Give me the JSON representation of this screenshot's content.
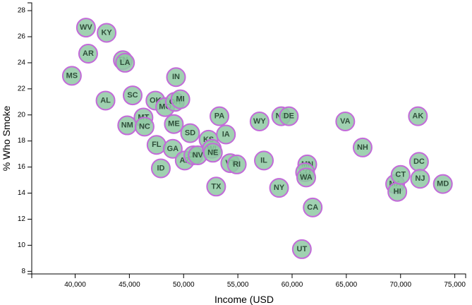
{
  "chart_data": {
    "type": "scatter",
    "title": "",
    "xlabel": "Income (USD",
    "ylabel": "% Who Smoke",
    "xlim": [
      36000,
      76000
    ],
    "ylim": [
      7.8,
      28.6
    ],
    "x_ticks": [
      40000,
      45000,
      50000,
      55000,
      60000,
      65000,
      70000,
      75000
    ],
    "x_tick_labels": [
      "40,000",
      "45,000",
      "50,000",
      "55,000",
      "60,000",
      "65,000",
      "70,000",
      "75,000"
    ],
    "y_ticks": [
      8,
      10,
      12,
      14,
      16,
      18,
      20,
      22,
      24,
      26,
      28
    ],
    "y_tick_labels": [
      "8",
      "10",
      "12",
      "14",
      "16",
      "18",
      "20",
      "22",
      "24",
      "26",
      "28"
    ],
    "marker_fill": "#8fc9a3",
    "marker_stroke": "#c36ad9",
    "points": [
      {
        "label": "WV",
        "x": 41000,
        "y": 26.7
      },
      {
        "label": "KY",
        "x": 42900,
        "y": 26.3
      },
      {
        "label": "AR",
        "x": 41200,
        "y": 24.7
      },
      {
        "label": "MS",
        "x": 39700,
        "y": 23.0
      },
      {
        "label": "TN",
        "x": 44400,
        "y": 24.2
      },
      {
        "label": "LA",
        "x": 44600,
        "y": 24.0
      },
      {
        "label": "AL",
        "x": 42800,
        "y": 21.1
      },
      {
        "label": "SC",
        "x": 45300,
        "y": 21.5
      },
      {
        "label": "IN",
        "x": 49300,
        "y": 22.9
      },
      {
        "label": "OK",
        "x": 47400,
        "y": 21.1
      },
      {
        "label": "MO",
        "x": 48300,
        "y": 20.6
      },
      {
        "label": "OH",
        "x": 49200,
        "y": 21.0
      },
      {
        "label": "MI",
        "x": 49700,
        "y": 21.2
      },
      {
        "label": "MT",
        "x": 46300,
        "y": 19.8
      },
      {
        "label": "NM",
        "x": 44800,
        "y": 19.2
      },
      {
        "label": "NC",
        "x": 46400,
        "y": 19.1
      },
      {
        "label": "ME",
        "x": 49100,
        "y": 19.3
      },
      {
        "label": "FL",
        "x": 47500,
        "y": 17.7
      },
      {
        "label": "GA",
        "x": 49000,
        "y": 17.4
      },
      {
        "label": "AZ",
        "x": 50100,
        "y": 16.5
      },
      {
        "label": "ID",
        "x": 47900,
        "y": 15.9
      },
      {
        "label": "SD",
        "x": 50600,
        "y": 18.6
      },
      {
        "label": "OR",
        "x": 50900,
        "y": 16.9
      },
      {
        "label": "NV",
        "x": 51300,
        "y": 16.9
      },
      {
        "label": "KS",
        "x": 52300,
        "y": 18.1
      },
      {
        "label": "WI",
        "x": 52600,
        "y": 17.4
      },
      {
        "label": "NE",
        "x": 52700,
        "y": 17.1
      },
      {
        "label": "PA",
        "x": 53300,
        "y": 19.9
      },
      {
        "label": "IA",
        "x": 53900,
        "y": 18.5
      },
      {
        "label": "TX",
        "x": 53000,
        "y": 14.5
      },
      {
        "label": "VT",
        "x": 54300,
        "y": 16.3
      },
      {
        "label": "RI",
        "x": 54900,
        "y": 16.2
      },
      {
        "label": "WY",
        "x": 57000,
        "y": 19.5
      },
      {
        "label": "IL",
        "x": 57400,
        "y": 16.5
      },
      {
        "label": "ND",
        "x": 59000,
        "y": 19.9
      },
      {
        "label": "DE",
        "x": 59700,
        "y": 19.9
      },
      {
        "label": "NY",
        "x": 58800,
        "y": 14.4
      },
      {
        "label": "UT",
        "x": 60900,
        "y": 9.7
      },
      {
        "label": "MN",
        "x": 61400,
        "y": 16.2
      },
      {
        "label": "CO",
        "x": 61200,
        "y": 15.6
      },
      {
        "label": "WA",
        "x": 61300,
        "y": 15.2
      },
      {
        "label": "CA",
        "x": 61900,
        "y": 12.9
      },
      {
        "label": "VA",
        "x": 64900,
        "y": 19.5
      },
      {
        "label": "NH",
        "x": 66500,
        "y": 17.5
      },
      {
        "label": "MA",
        "x": 69500,
        "y": 14.7
      },
      {
        "label": "HI",
        "x": 69700,
        "y": 14.1
      },
      {
        "label": "CT",
        "x": 70000,
        "y": 15.4
      },
      {
        "label": "AK",
        "x": 71600,
        "y": 19.9
      },
      {
        "label": "DC",
        "x": 71700,
        "y": 16.4
      },
      {
        "label": "NJ",
        "x": 71800,
        "y": 15.1
      },
      {
        "label": "MD",
        "x": 73900,
        "y": 14.7
      }
    ]
  }
}
